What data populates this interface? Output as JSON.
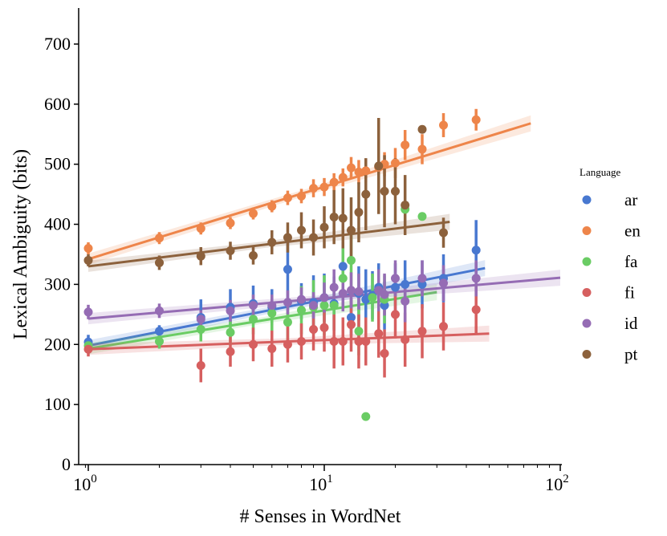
{
  "chart_data": {
    "type": "scatter",
    "xscale": "log",
    "xlabel": "# Senses in WordNet",
    "ylabel": "Lexical Ambiguity (bits)",
    "xlim": [
      0.95,
      100
    ],
    "ylim": [
      0,
      760
    ],
    "xticks": [
      {
        "base": "10",
        "exp": "0",
        "value": 1
      },
      {
        "base": "10",
        "exp": "1",
        "value": 10
      },
      {
        "base": "10",
        "exp": "2",
        "value": 100
      }
    ],
    "yticks": [
      0,
      100,
      200,
      300,
      400,
      500,
      600,
      700
    ],
    "legend": {
      "title": "Language",
      "position": "right"
    },
    "series": [
      {
        "name": "ar",
        "color": "#4878d0",
        "points": [
          [
            1,
            204,
            12
          ],
          [
            2,
            222,
            10
          ],
          [
            3,
            245,
            30
          ],
          [
            4,
            262,
            30
          ],
          [
            5,
            268,
            30
          ],
          [
            6,
            262,
            30
          ],
          [
            7,
            325,
            50
          ],
          [
            8,
            272,
            30
          ],
          [
            9,
            270,
            45
          ],
          [
            10,
            278,
            40
          ],
          [
            11,
            268,
            45
          ],
          [
            12,
            330,
            40
          ],
          [
            13,
            245,
            30
          ],
          [
            14,
            285,
            45
          ],
          [
            15,
            275,
            50
          ],
          [
            16,
            282,
            40
          ],
          [
            17,
            295,
            40
          ],
          [
            18,
            265,
            40
          ],
          [
            20,
            295,
            40
          ],
          [
            22,
            300,
            40
          ],
          [
            26,
            300,
            40
          ],
          [
            32,
            310,
            40
          ],
          [
            44,
            357,
            50
          ]
        ],
        "fit": {
          "x": [
            1,
            48
          ],
          "y": [
            198,
            327
          ]
        }
      },
      {
        "name": "en",
        "color": "#ee854a",
        "points": [
          [
            1,
            360,
            10
          ],
          [
            2,
            377,
            10
          ],
          [
            3,
            393,
            10
          ],
          [
            4,
            402,
            10
          ],
          [
            5,
            418,
            10
          ],
          [
            6,
            430,
            10
          ],
          [
            7,
            444,
            12
          ],
          [
            8,
            447,
            12
          ],
          [
            9,
            460,
            15
          ],
          [
            10,
            462,
            15
          ],
          [
            11,
            470,
            15
          ],
          [
            12,
            478,
            15
          ],
          [
            13,
            494,
            18
          ],
          [
            14,
            487,
            20
          ],
          [
            15,
            489,
            20
          ],
          [
            17,
            495,
            20
          ],
          [
            18,
            500,
            20
          ],
          [
            20,
            502,
            25
          ],
          [
            22,
            532,
            25
          ],
          [
            26,
            525,
            25
          ],
          [
            32,
            565,
            20
          ],
          [
            44,
            574,
            18
          ]
        ],
        "fit": {
          "x": [
            1,
            75
          ],
          "y": [
            342,
            568
          ]
        }
      },
      {
        "name": "fa",
        "color": "#6acc64",
        "points": [
          [
            1,
            198,
            10
          ],
          [
            2,
            205,
            12
          ],
          [
            3,
            225,
            20
          ],
          [
            4,
            220,
            20
          ],
          [
            5,
            242,
            25
          ],
          [
            6,
            252,
            30
          ],
          [
            7,
            237,
            35
          ],
          [
            8,
            257,
            40
          ],
          [
            9,
            262,
            45
          ],
          [
            10,
            265,
            50
          ],
          [
            11,
            265,
            40
          ],
          [
            12,
            310,
            50
          ],
          [
            13,
            340,
            50
          ],
          [
            14,
            222,
            40
          ],
          [
            15,
            80,
            0
          ],
          [
            16,
            278,
            40
          ],
          [
            18,
            275,
            40
          ],
          [
            22,
            425,
            0
          ],
          [
            26,
            413,
            0
          ]
        ],
        "fit": {
          "x": [
            1,
            30
          ],
          "y": [
            193,
            287
          ]
        }
      },
      {
        "name": "fi",
        "color": "#d65f5f",
        "points": [
          [
            1,
            192,
            12
          ],
          [
            3,
            165,
            28
          ],
          [
            4,
            188,
            25
          ],
          [
            5,
            200,
            28
          ],
          [
            6,
            193,
            30
          ],
          [
            7,
            200,
            30
          ],
          [
            8,
            205,
            30
          ],
          [
            9,
            225,
            35
          ],
          [
            10,
            228,
            40
          ],
          [
            11,
            205,
            45
          ],
          [
            12,
            205,
            40
          ],
          [
            13,
            233,
            45
          ],
          [
            14,
            205,
            45
          ],
          [
            15,
            205,
            40
          ],
          [
            17,
            218,
            40
          ],
          [
            18,
            185,
            40
          ],
          [
            20,
            250,
            40
          ],
          [
            22,
            208,
            45
          ],
          [
            26,
            222,
            45
          ],
          [
            32,
            230,
            40
          ],
          [
            44,
            258,
            40
          ]
        ],
        "fit": {
          "x": [
            1,
            50
          ],
          "y": [
            192,
            218
          ]
        }
      },
      {
        "name": "id",
        "color": "#956cb4",
        "points": [
          [
            1,
            254,
            12
          ],
          [
            2,
            256,
            12
          ],
          [
            3,
            242,
            15
          ],
          [
            4,
            256,
            18
          ],
          [
            5,
            265,
            18
          ],
          [
            6,
            265,
            18
          ],
          [
            7,
            270,
            20
          ],
          [
            8,
            275,
            20
          ],
          [
            9,
            265,
            22
          ],
          [
            10,
            278,
            25
          ],
          [
            11,
            295,
            30
          ],
          [
            12,
            285,
            30
          ],
          [
            13,
            290,
            30
          ],
          [
            14,
            288,
            30
          ],
          [
            17,
            290,
            35
          ],
          [
            18,
            283,
            35
          ],
          [
            20,
            310,
            30
          ],
          [
            22,
            272,
            35
          ],
          [
            26,
            310,
            30
          ],
          [
            32,
            302,
            30
          ],
          [
            44,
            310,
            30
          ]
        ],
        "fit": {
          "x": [
            1,
            100
          ],
          "y": [
            243,
            311
          ]
        }
      },
      {
        "name": "pt",
        "color": "#8c613c",
        "points": [
          [
            1,
            340,
            10
          ],
          [
            2,
            336,
            12
          ],
          [
            3,
            347,
            15
          ],
          [
            4,
            356,
            15
          ],
          [
            5,
            348,
            15
          ],
          [
            6,
            370,
            20
          ],
          [
            7,
            378,
            25
          ],
          [
            8,
            390,
            30
          ],
          [
            9,
            378,
            30
          ],
          [
            10,
            395,
            35
          ],
          [
            11,
            412,
            45
          ],
          [
            12,
            410,
            50
          ],
          [
            13,
            390,
            55
          ],
          [
            14,
            420,
            50
          ],
          [
            15,
            450,
            60
          ],
          [
            17,
            497,
            80
          ],
          [
            18,
            455,
            60
          ],
          [
            20,
            455,
            55
          ],
          [
            22,
            432,
            50
          ],
          [
            26,
            558,
            0
          ],
          [
            32,
            386,
            25
          ]
        ],
        "fit": {
          "x": [
            1,
            34
          ],
          "y": [
            330,
            404
          ]
        }
      }
    ]
  }
}
